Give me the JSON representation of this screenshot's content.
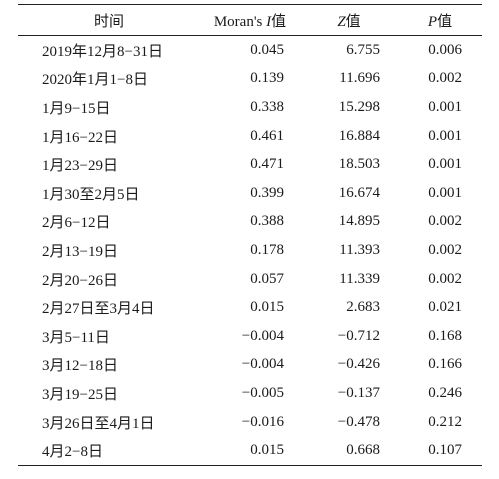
{
  "table": {
    "headers": {
      "time": "时间",
      "moran_prefix": "Moran's ",
      "moran_var": "I",
      "moran_suffix": "值",
      "z_var": "Z",
      "z_suffix": "值",
      "p_var": "P",
      "p_suffix": "值"
    },
    "rows": [
      {
        "time": "2019年12月8−31日",
        "moran": "0.045",
        "z": "6.755",
        "p": "0.006"
      },
      {
        "time": "2020年1月1−8日",
        "moran": "0.139",
        "z": "11.696",
        "p": "0.002"
      },
      {
        "time": "1月9−15日",
        "moran": "0.338",
        "z": "15.298",
        "p": "0.001"
      },
      {
        "time": "1月16−22日",
        "moran": "0.461",
        "z": "16.884",
        "p": "0.001"
      },
      {
        "time": "1月23−29日",
        "moran": "0.471",
        "z": "18.503",
        "p": "0.001"
      },
      {
        "time": "1月30至2月5日",
        "moran": "0.399",
        "z": "16.674",
        "p": "0.001"
      },
      {
        "time": "2月6−12日",
        "moran": "0.388",
        "z": "14.895",
        "p": "0.002"
      },
      {
        "time": "2月13−19日",
        "moran": "0.178",
        "z": "11.393",
        "p": "0.002"
      },
      {
        "time": "2月20−26日",
        "moran": "0.057",
        "z": "11.339",
        "p": "0.002"
      },
      {
        "time": "2月27日至3月4日",
        "moran": "0.015",
        "z": "2.683",
        "p": "0.021"
      },
      {
        "time": "3月5−11日",
        "moran": "−0.004",
        "z": "−0.712",
        "p": "0.168"
      },
      {
        "time": "3月12−18日",
        "moran": "−0.004",
        "z": "−0.426",
        "p": "0.166"
      },
      {
        "time": "3月19−25日",
        "moran": "−0.005",
        "z": "−0.137",
        "p": "0.246"
      },
      {
        "time": "3月26日至4月1日",
        "moran": "−0.016",
        "z": "−0.478",
        "p": "0.212"
      },
      {
        "time": "4月2−8日",
        "moran": "0.015",
        "z": "0.668",
        "p": "0.107"
      }
    ]
  }
}
